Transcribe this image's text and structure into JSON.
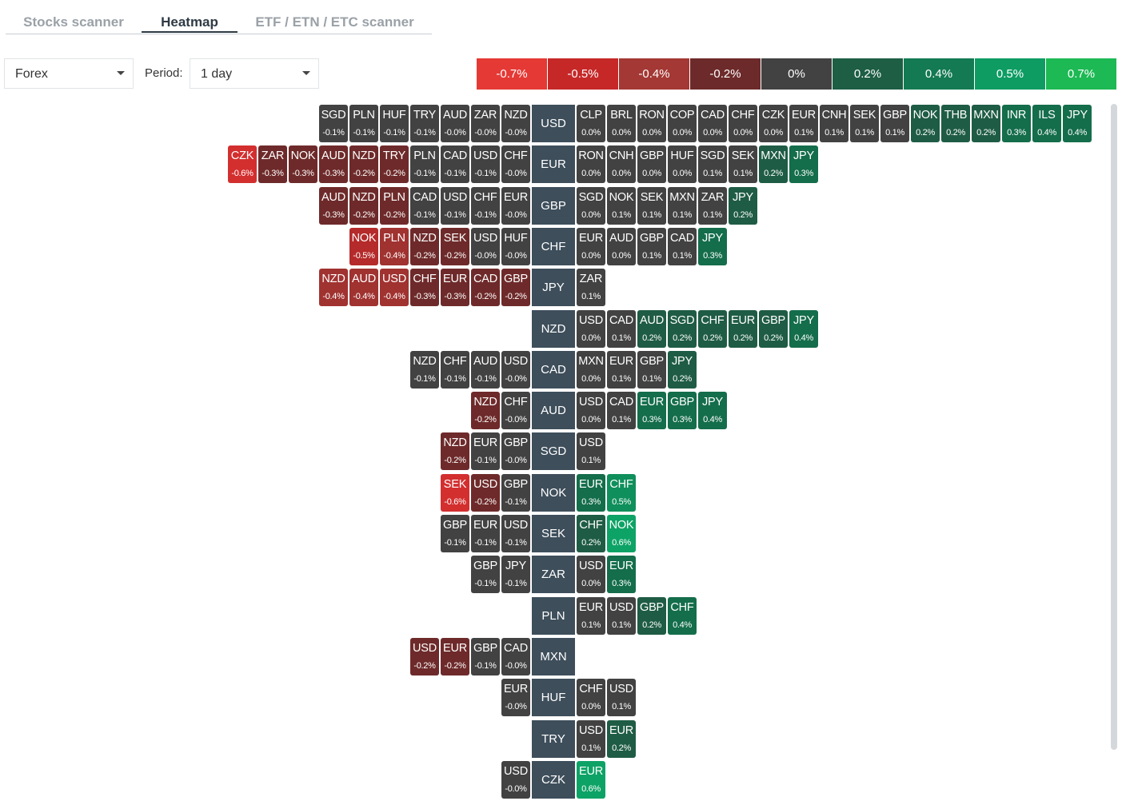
{
  "tabs": [
    {
      "label": "Stocks scanner",
      "active": false
    },
    {
      "label": "Heatmap",
      "active": true
    },
    {
      "label": "ETF / ETN / ETC scanner",
      "active": false
    }
  ],
  "filters": {
    "asset_class": "Forex",
    "period_label": "Period:",
    "period_value": "1 day"
  },
  "legend": [
    {
      "label": "-0.7%",
      "color": "#e53935"
    },
    {
      "label": "-0.5%",
      "color": "#c62828"
    },
    {
      "label": "-0.4%",
      "color": "#a33834"
    },
    {
      "label": "-0.2%",
      "color": "#6d2a2a"
    },
    {
      "label": "0%",
      "color": "#424242"
    },
    {
      "label": "0.2%",
      "color": "#1d5e45"
    },
    {
      "label": "0.4%",
      "color": "#137a53"
    },
    {
      "label": "0.5%",
      "color": "#0e9c63"
    },
    {
      "label": "0.7%",
      "color": "#1db954"
    }
  ],
  "rows": [
    {
      "base": "USD",
      "left": [
        [
          "SGD",
          "-0.1%"
        ],
        [
          "PLN",
          "-0.1%"
        ],
        [
          "HUF",
          "-0.1%"
        ],
        [
          "TRY",
          "-0.1%"
        ],
        [
          "AUD",
          "-0.0%"
        ],
        [
          "ZAR",
          "-0.0%"
        ],
        [
          "NZD",
          "-0.0%"
        ]
      ],
      "right": [
        [
          "CLP",
          "0.0%"
        ],
        [
          "BRL",
          "0.0%"
        ],
        [
          "RON",
          "0.0%"
        ],
        [
          "COP",
          "0.0%"
        ],
        [
          "CAD",
          "0.0%"
        ],
        [
          "CHF",
          "0.0%"
        ],
        [
          "CZK",
          "0.0%"
        ],
        [
          "EUR",
          "0.1%"
        ],
        [
          "CNH",
          "0.1%"
        ],
        [
          "SEK",
          "0.1%"
        ],
        [
          "GBP",
          "0.1%"
        ],
        [
          "NOK",
          "0.2%"
        ],
        [
          "THB",
          "0.2%"
        ],
        [
          "MXN",
          "0.2%"
        ],
        [
          "INR",
          "0.3%"
        ],
        [
          "ILS",
          "0.4%"
        ],
        [
          "JPY",
          "0.4%"
        ]
      ]
    },
    {
      "base": "EUR",
      "left": [
        [
          "CZK",
          "-0.6%"
        ],
        [
          "ZAR",
          "-0.3%"
        ],
        [
          "NOK",
          "-0.3%"
        ],
        [
          "AUD",
          "-0.3%"
        ],
        [
          "NZD",
          "-0.2%"
        ],
        [
          "TRY",
          "-0.2%"
        ],
        [
          "PLN",
          "-0.1%"
        ],
        [
          "CAD",
          "-0.1%"
        ],
        [
          "USD",
          "-0.1%"
        ],
        [
          "CHF",
          "-0.0%"
        ]
      ],
      "right": [
        [
          "RON",
          "0.0%"
        ],
        [
          "CNH",
          "0.0%"
        ],
        [
          "GBP",
          "0.0%"
        ],
        [
          "HUF",
          "0.0%"
        ],
        [
          "SGD",
          "0.1%"
        ],
        [
          "SEK",
          "0.1%"
        ],
        [
          "MXN",
          "0.2%"
        ],
        [
          "JPY",
          "0.3%"
        ]
      ]
    },
    {
      "base": "GBP",
      "left": [
        [
          "AUD",
          "-0.3%"
        ],
        [
          "NZD",
          "-0.2%"
        ],
        [
          "PLN",
          "-0.2%"
        ],
        [
          "CAD",
          "-0.1%"
        ],
        [
          "USD",
          "-0.1%"
        ],
        [
          "CHF",
          "-0.1%"
        ],
        [
          "EUR",
          "-0.0%"
        ]
      ],
      "right": [
        [
          "SGD",
          "0.0%"
        ],
        [
          "NOK",
          "0.1%"
        ],
        [
          "SEK",
          "0.1%"
        ],
        [
          "MXN",
          "0.1%"
        ],
        [
          "ZAR",
          "0.1%"
        ],
        [
          "JPY",
          "0.2%"
        ]
      ]
    },
    {
      "base": "CHF",
      "left": [
        [
          "NOK",
          "-0.5%"
        ],
        [
          "PLN",
          "-0.4%"
        ],
        [
          "NZD",
          "-0.2%"
        ],
        [
          "SEK",
          "-0.2%"
        ],
        [
          "USD",
          "-0.0%"
        ],
        [
          "HUF",
          "-0.0%"
        ]
      ],
      "right": [
        [
          "EUR",
          "0.0%"
        ],
        [
          "AUD",
          "0.0%"
        ],
        [
          "GBP",
          "0.1%"
        ],
        [
          "CAD",
          "0.1%"
        ],
        [
          "JPY",
          "0.3%"
        ]
      ]
    },
    {
      "base": "JPY",
      "left": [
        [
          "NZD",
          "-0.4%"
        ],
        [
          "AUD",
          "-0.4%"
        ],
        [
          "USD",
          "-0.4%"
        ],
        [
          "CHF",
          "-0.3%"
        ],
        [
          "EUR",
          "-0.3%"
        ],
        [
          "CAD",
          "-0.2%"
        ],
        [
          "GBP",
          "-0.2%"
        ]
      ],
      "right": [
        [
          "ZAR",
          "0.1%"
        ]
      ]
    },
    {
      "base": "NZD",
      "left": [],
      "right": [
        [
          "USD",
          "0.0%"
        ],
        [
          "CAD",
          "0.1%"
        ],
        [
          "AUD",
          "0.2%"
        ],
        [
          "SGD",
          "0.2%"
        ],
        [
          "CHF",
          "0.2%"
        ],
        [
          "EUR",
          "0.2%"
        ],
        [
          "GBP",
          "0.2%"
        ],
        [
          "JPY",
          "0.4%"
        ]
      ]
    },
    {
      "base": "CAD",
      "left": [
        [
          "NZD",
          "-0.1%"
        ],
        [
          "CHF",
          "-0.1%"
        ],
        [
          "AUD",
          "-0.1%"
        ],
        [
          "USD",
          "-0.0%"
        ]
      ],
      "right": [
        [
          "MXN",
          "0.0%"
        ],
        [
          "EUR",
          "0.1%"
        ],
        [
          "GBP",
          "0.1%"
        ],
        [
          "JPY",
          "0.2%"
        ]
      ]
    },
    {
      "base": "AUD",
      "left": [
        [
          "NZD",
          "-0.2%"
        ],
        [
          "CHF",
          "-0.0%"
        ]
      ],
      "right": [
        [
          "USD",
          "0.0%"
        ],
        [
          "CAD",
          "0.1%"
        ],
        [
          "EUR",
          "0.3%"
        ],
        [
          "GBP",
          "0.3%"
        ],
        [
          "JPY",
          "0.4%"
        ]
      ]
    },
    {
      "base": "SGD",
      "left": [
        [
          "NZD",
          "-0.2%"
        ],
        [
          "EUR",
          "-0.1%"
        ],
        [
          "GBP",
          "-0.0%"
        ]
      ],
      "right": [
        [
          "USD",
          "0.1%"
        ]
      ]
    },
    {
      "base": "NOK",
      "left": [
        [
          "SEK",
          "-0.6%"
        ],
        [
          "USD",
          "-0.2%"
        ],
        [
          "GBP",
          "-0.1%"
        ]
      ],
      "right": [
        [
          "EUR",
          "0.3%"
        ],
        [
          "CHF",
          "0.5%"
        ]
      ]
    },
    {
      "base": "SEK",
      "left": [
        [
          "GBP",
          "-0.1%"
        ],
        [
          "EUR",
          "-0.1%"
        ],
        [
          "USD",
          "-0.1%"
        ]
      ],
      "right": [
        [
          "CHF",
          "0.2%"
        ],
        [
          "NOK",
          "0.6%"
        ]
      ]
    },
    {
      "base": "ZAR",
      "left": [
        [
          "GBP",
          "-0.1%"
        ],
        [
          "JPY",
          "-0.1%"
        ]
      ],
      "right": [
        [
          "USD",
          "0.0%"
        ],
        [
          "EUR",
          "0.3%"
        ]
      ]
    },
    {
      "base": "PLN",
      "left": [],
      "right": [
        [
          "EUR",
          "0.1%"
        ],
        [
          "USD",
          "0.1%"
        ],
        [
          "GBP",
          "0.2%"
        ],
        [
          "CHF",
          "0.4%"
        ]
      ]
    },
    {
      "base": "MXN",
      "left": [
        [
          "USD",
          "-0.2%"
        ],
        [
          "EUR",
          "-0.2%"
        ],
        [
          "GBP",
          "-0.1%"
        ],
        [
          "CAD",
          "-0.0%"
        ]
      ],
      "right": []
    },
    {
      "base": "HUF",
      "left": [
        [
          "EUR",
          "-0.0%"
        ]
      ],
      "right": [
        [
          "CHF",
          "0.0%"
        ],
        [
          "USD",
          "0.1%"
        ]
      ]
    },
    {
      "base": "TRY",
      "left": [],
      "right": [
        [
          "USD",
          "0.1%"
        ],
        [
          "EUR",
          "0.2%"
        ]
      ]
    },
    {
      "base": "CZK",
      "left": [
        [
          "USD",
          "-0.0%"
        ]
      ],
      "right": [
        [
          "EUR",
          "0.6%"
        ]
      ]
    }
  ]
}
